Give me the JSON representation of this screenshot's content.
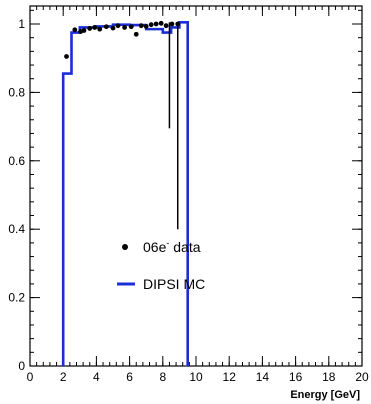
{
  "chart_data": {
    "type": "scatter",
    "xlabel": "Energy [GeV]",
    "ylabel": "",
    "xlim": [
      0,
      20
    ],
    "ylim": [
      0,
      1.05
    ],
    "x_ticks": [
      0,
      2,
      4,
      6,
      8,
      10,
      12,
      14,
      16,
      18,
      20
    ],
    "x_tick_labels": [
      "0",
      "2",
      "4",
      "6",
      "8",
      "10",
      "12",
      "14",
      "16",
      "18",
      "20"
    ],
    "y_ticks": [
      0,
      0.2,
      0.4,
      0.6,
      0.8,
      1.0
    ],
    "y_tick_labels": [
      "0",
      "0.2",
      "0.4",
      "0.6",
      "0.8",
      "1"
    ],
    "grid": false,
    "legend_placement": "center-left",
    "legend": [
      {
        "label_main": "06e",
        "label_sup": "-",
        "label_rest": " data",
        "marker": "dot"
      },
      {
        "label_main": "DIPSI MC",
        "label_sup": "",
        "label_rest": "",
        "marker": "line"
      }
    ],
    "series": [
      {
        "kind": "points",
        "x": [
          2.2,
          2.7,
          3.05,
          3.25,
          3.6,
          3.9,
          4.2,
          4.6,
          5.0,
          5.3,
          5.7,
          6.1,
          6.4,
          6.7,
          7.0,
          7.3,
          7.6,
          7.9,
          8.2,
          8.55,
          8.9
        ],
        "y": [
          0.905,
          0.983,
          0.978,
          0.981,
          0.987,
          0.99,
          0.985,
          0.992,
          0.988,
          0.995,
          0.99,
          0.992,
          0.97,
          0.995,
          0.993,
          0.998,
          1.0,
          1.002,
          0.995,
          1.0,
          1.0
        ],
        "error_bars": [
          {
            "x": 8.4,
            "low": 0.695,
            "high": 1.005
          },
          {
            "x": 8.9,
            "low": 0.4,
            "high": 1.005
          }
        ],
        "color": "#000000"
      },
      {
        "kind": "step",
        "edges": [
          2.0,
          2.5,
          3.0,
          4.0,
          5.0,
          6.0,
          7.0,
          8.0,
          8.5,
          9.0,
          9.5
        ],
        "values": [
          0.855,
          0.975,
          0.99,
          0.993,
          0.998,
          0.997,
          0.985,
          0.975,
          0.99,
          1.005
        ],
        "color": "#1a2ed6"
      }
    ]
  }
}
